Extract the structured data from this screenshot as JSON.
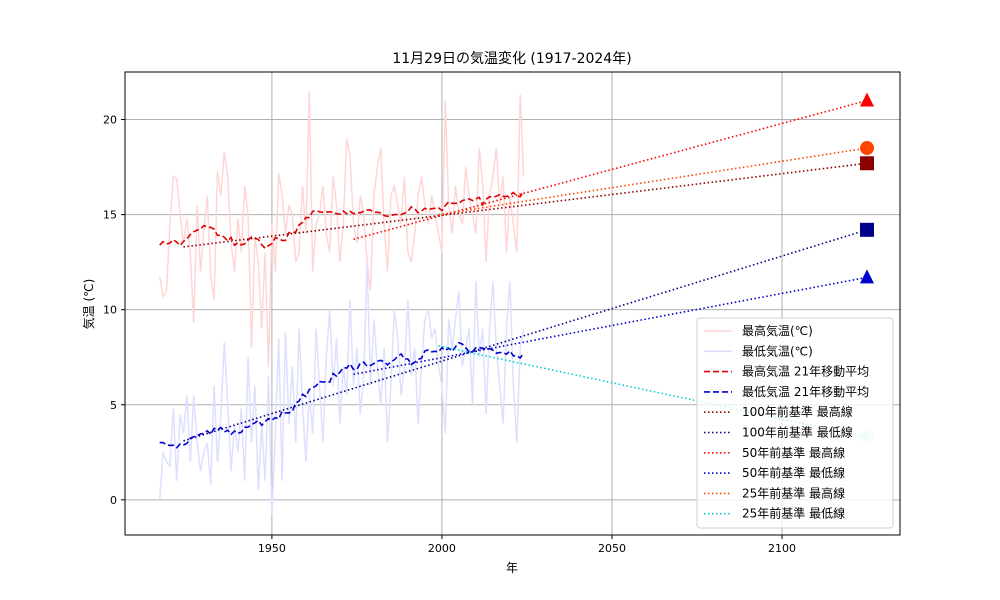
{
  "chart_data": {
    "type": "line",
    "title": "11月29日の気温変化 (1917-2024年)",
    "xlabel": "年",
    "ylabel": "気温 (℃)",
    "xlim": [
      1906.8,
      2134.7
    ],
    "ylim": [
      -1.85,
      22.5
    ],
    "xticks": [
      1950,
      2000,
      2050,
      2100
    ],
    "yticks": [
      0,
      5,
      10,
      15,
      20
    ],
    "grid": true,
    "legend_position": "lower-right",
    "start_year": 1917,
    "max_temp": [
      11.7,
      10.7,
      11.0,
      14.5,
      17.0,
      16.9,
      15.0,
      13.5,
      14.8,
      13.0,
      9.3,
      15.5,
      12.0,
      14.2,
      16.0,
      11.8,
      10.5,
      17.3,
      16.0,
      18.3,
      17.0,
      13.5,
      12.0,
      14.8,
      13.0,
      16.5,
      15.0,
      8.0,
      13.8,
      12.5,
      9.0,
      13.0,
      7.0,
      14.5,
      12.0,
      17.2,
      16.0,
      14.0,
      15.5,
      15.0,
      12.5,
      13.0,
      16.5,
      14.0,
      21.5,
      12.0,
      14.5,
      15.0,
      16.5,
      14.0,
      13.0,
      17.0,
      15.5,
      12.5,
      14.5,
      19.0,
      18.0,
      14.5,
      13.5,
      16.0,
      15.0,
      12.5,
      11.0,
      16.0,
      17.5,
      18.5,
      14.5,
      12.0,
      16.0,
      16.5,
      15.5,
      14.5,
      17.0,
      13.0,
      12.5,
      14.0,
      16.0,
      17.0,
      15.5,
      14.5,
      16.0,
      15.0,
      14.0,
      13.0,
      21.0,
      15.5,
      14.0,
      16.5,
      15.0,
      14.5,
      17.5,
      16.0,
      15.0,
      14.0,
      18.5,
      16.5,
      12.5,
      16.0,
      17.0,
      18.5,
      15.5,
      17.0,
      13.0,
      16.0,
      14.5,
      13.0,
      21.3,
      17.0
    ],
    "min_temp": [
      0.0,
      2.5,
      2.0,
      1.8,
      4.8,
      1.0,
      4.5,
      3.5,
      5.5,
      2.0,
      5.5,
      3.0,
      1.5,
      2.5,
      3.0,
      0.8,
      6.0,
      2.0,
      4.5,
      8.3,
      5.0,
      1.5,
      4.0,
      2.5,
      4.8,
      1.0,
      7.5,
      3.0,
      6.0,
      0.5,
      4.0,
      1.0,
      6.5,
      -0.8,
      3.5,
      8.5,
      1.0,
      8.8,
      4.0,
      7.0,
      3.0,
      9.0,
      5.0,
      2.0,
      5.5,
      3.5,
      9.0,
      6.0,
      3.0,
      7.5,
      10.0,
      6.0,
      8.5,
      4.0,
      7.0,
      5.5,
      10.5,
      6.0,
      8.0,
      4.5,
      6.5,
      12.5,
      6.0,
      9.5,
      7.0,
      5.0,
      8.0,
      3.0,
      6.0,
      10.0,
      8.5,
      5.5,
      7.0,
      10.5,
      6.5,
      8.0,
      4.0,
      7.0,
      9.5,
      10.0,
      8.5,
      9.0,
      7.0,
      6.0,
      3.5,
      9.5,
      8.0,
      9.5,
      11.0,
      7.0,
      8.0,
      9.0,
      5.0,
      11.5,
      7.5,
      9.0,
      4.5,
      9.0,
      11.5,
      8.0,
      6.0,
      4.0,
      9.0,
      11.5,
      6.0,
      3.0,
      8.0,
      9.0
    ],
    "moving_average_window": 21,
    "trend_lines": [
      {
        "name": "100年前基準 最高線",
        "x": [
          1924,
          2125
        ],
        "y": [
          13.3,
          17.7
        ],
        "color": "#8b0000",
        "marker": "square"
      },
      {
        "name": "100年前基準 最低線",
        "x": [
          1924,
          2125
        ],
        "y": [
          3.1,
          14.2
        ],
        "color": "#00008b",
        "marker": "square"
      },
      {
        "name": "50年前基準 最高線",
        "x": [
          1974,
          2125
        ],
        "y": [
          13.7,
          21.0
        ],
        "color": "#ff0000",
        "marker": "triangle"
      },
      {
        "name": "50年前基準 最低線",
        "x": [
          1974,
          2125
        ],
        "y": [
          6.6,
          11.7
        ],
        "color": "#0000cd",
        "marker": "triangle"
      },
      {
        "name": "25年前基準 最高線",
        "x": [
          1999,
          2125
        ],
        "y": [
          15.0,
          18.5
        ],
        "color": "#ff4500",
        "marker": "circle"
      },
      {
        "name": "25年前基準 最低線",
        "x": [
          1999,
          2125
        ],
        "y": [
          8.1,
          3.3
        ],
        "color": "#00ced1",
        "marker": "circle"
      }
    ],
    "legend": [
      {
        "label": "最高気温(℃)",
        "color": "#ffd6d6",
        "style": "solid"
      },
      {
        "label": "最低気温(℃)",
        "color": "#d8dcff",
        "style": "solid"
      },
      {
        "label": "最高気温 21年移動平均",
        "color": "#e00000",
        "style": "dashed"
      },
      {
        "label": "最低気温 21年移動平均",
        "color": "#0000d0",
        "style": "dashed"
      },
      {
        "label": "100年前基準 最高線",
        "color": "#8b0000",
        "style": "dotted"
      },
      {
        "label": "100年前基準 最低線",
        "color": "#00008b",
        "style": "dotted"
      },
      {
        "label": "50年前基準 最高線",
        "color": "#ff0000",
        "style": "dotted"
      },
      {
        "label": "50年前基準 最低線",
        "color": "#0000cd",
        "style": "dotted"
      },
      {
        "label": "25年前基準 最高線",
        "color": "#ff4500",
        "style": "dotted"
      },
      {
        "label": "25年前基準 最低線",
        "color": "#00ced1",
        "style": "dotted"
      }
    ]
  }
}
